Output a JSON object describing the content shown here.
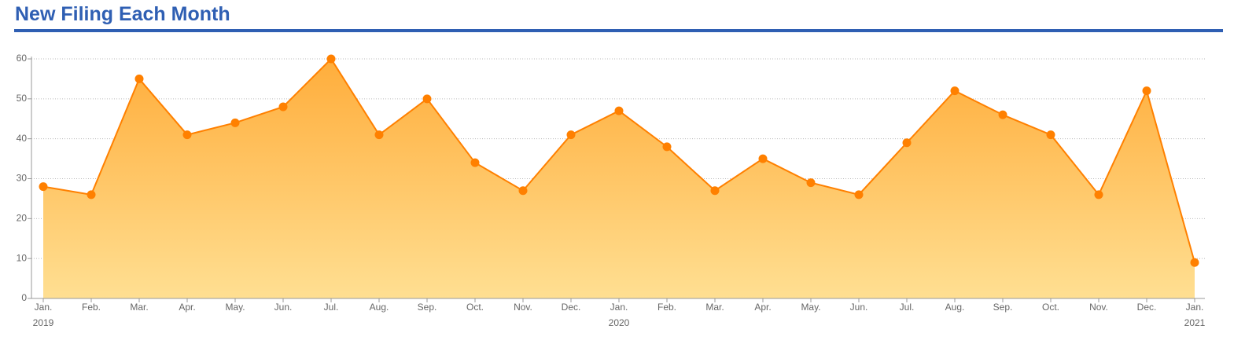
{
  "chart_data": {
    "type": "area",
    "title": "New Filing Each Month",
    "categories": [
      "Jan.",
      "Feb.",
      "Mar.",
      "Apr.",
      "May.",
      "Jun.",
      "Jul.",
      "Aug.",
      "Sep.",
      "Oct.",
      "Nov.",
      "Dec.",
      "Jan.",
      "Feb.",
      "Mar.",
      "Apr.",
      "May.",
      "Jun.",
      "Jul.",
      "Aug.",
      "Sep.",
      "Oct.",
      "Nov.",
      "Dec.",
      "Jan."
    ],
    "category_years": [
      "2019",
      null,
      null,
      null,
      null,
      null,
      null,
      null,
      null,
      null,
      null,
      null,
      "2020",
      null,
      null,
      null,
      null,
      null,
      null,
      null,
      null,
      null,
      null,
      null,
      "2021"
    ],
    "values": [
      28,
      26,
      55,
      41,
      44,
      48,
      60,
      41,
      50,
      34,
      27,
      41,
      47,
      38,
      27,
      35,
      29,
      26,
      39,
      52,
      46,
      41,
      26,
      52,
      9
    ],
    "color": "#ff8000",
    "fill_top": "#ffad3b",
    "fill_bottom": "#ffdf92",
    "ylim": [
      0,
      60
    ],
    "yticks": [
      0,
      10,
      20,
      30,
      40,
      50,
      60
    ],
    "grid": true
  }
}
